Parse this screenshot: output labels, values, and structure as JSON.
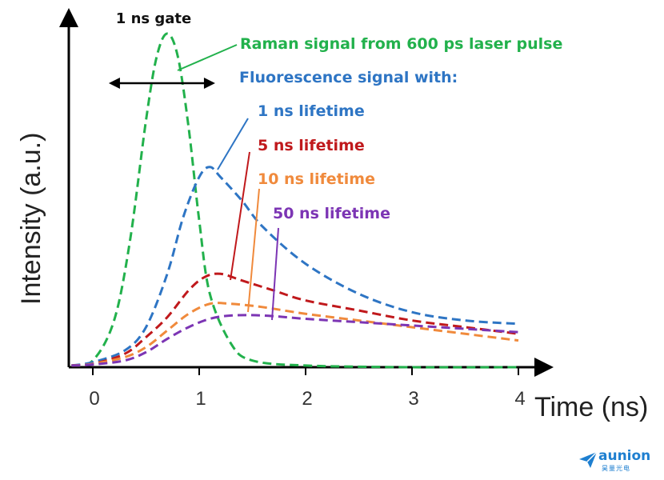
{
  "chart_data": {
    "type": "line",
    "xlabel": "Time (ns)",
    "ylabel": "Intensity  (a.u.)",
    "xlim": [
      -0.25,
      4.3
    ],
    "ylim": [
      0,
      1.0
    ],
    "x_ticks": [
      "0",
      "1",
      "2",
      "3",
      "4"
    ],
    "y_ticks": [],
    "grid": false,
    "legend": "none",
    "gate": {
      "label": "1 ns gate",
      "start": 0.15,
      "end": 1.15
    },
    "annotations": {
      "raman": "Raman signal from 600 ps laser pulse",
      "fluorescence_header": "Fluorescence signal with:"
    },
    "series": [
      {
        "name": "Raman signal from 600 ps laser pulse",
        "color": "#22b14c",
        "x": [
          -0.2,
          0,
          0.2,
          0.35,
          0.5,
          0.6,
          0.7,
          0.8,
          0.9,
          1.0,
          1.1,
          1.3,
          1.5,
          2.0,
          3.0,
          4.0
        ],
        "y": [
          0.005,
          0.02,
          0.14,
          0.38,
          0.74,
          0.93,
          1.0,
          0.93,
          0.72,
          0.44,
          0.22,
          0.07,
          0.02,
          0.005,
          0.0,
          0.0
        ]
      },
      {
        "name": "1 ns lifetime",
        "color": "#2e75c4",
        "x": [
          -0.2,
          0,
          0.3,
          0.5,
          0.7,
          0.85,
          1.0,
          1.1,
          1.2,
          1.4,
          1.6,
          2.0,
          2.5,
          3.0,
          3.5,
          4.0
        ],
        "y": [
          0.005,
          0.015,
          0.05,
          0.12,
          0.28,
          0.45,
          0.57,
          0.6,
          0.57,
          0.5,
          0.42,
          0.31,
          0.22,
          0.165,
          0.14,
          0.13
        ]
      },
      {
        "name": "5 ns lifetime",
        "color": "#c0191c",
        "x": [
          -0.2,
          0,
          0.3,
          0.5,
          0.7,
          0.9,
          1.05,
          1.2,
          1.4,
          1.7,
          2.0,
          2.5,
          3.0,
          3.5,
          4.0
        ],
        "y": [
          0.005,
          0.01,
          0.04,
          0.09,
          0.15,
          0.23,
          0.27,
          0.28,
          0.26,
          0.23,
          0.2,
          0.17,
          0.14,
          0.12,
          0.1
        ]
      },
      {
        "name": "10 ns lifetime",
        "color": "#f08a3c",
        "x": [
          -0.2,
          0,
          0.3,
          0.5,
          0.7,
          0.9,
          1.1,
          1.3,
          1.6,
          2.0,
          2.5,
          3.0,
          3.5,
          4.0
        ],
        "y": [
          0.005,
          0.01,
          0.03,
          0.06,
          0.11,
          0.16,
          0.19,
          0.19,
          0.18,
          0.16,
          0.14,
          0.12,
          0.1,
          0.08
        ]
      },
      {
        "name": "50 ns lifetime",
        "color": "#7c35b4",
        "x": [
          -0.2,
          0,
          0.3,
          0.5,
          0.7,
          0.9,
          1.1,
          1.3,
          1.6,
          2.0,
          2.5,
          3.0,
          3.5,
          4.0
        ],
        "y": [
          0.005,
          0.008,
          0.02,
          0.045,
          0.085,
          0.12,
          0.145,
          0.155,
          0.155,
          0.145,
          0.135,
          0.125,
          0.115,
          0.105
        ]
      }
    ]
  },
  "logo": {
    "name": "aunion",
    "sub": "昊量光电"
  }
}
